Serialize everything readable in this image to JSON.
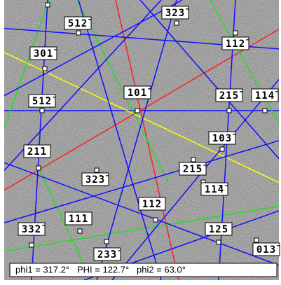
{
  "labels": [
    "512̄",
    "323̄",
    "112̄",
    "301̄",
    "51̄2̄",
    "101̄",
    "215̄",
    "114̄",
    "103̄",
    "21̄1",
    "21̄5̄",
    "32̄3̄",
    "11̄4̄",
    "11̄1",
    "11̄2",
    "12̄5",
    "33̄2̄",
    "23̄3̄",
    "013̄"
  ],
  "footer": "phi1 = 317.2°   PHI = 122.7°   phi2 = 63.0°"
}
